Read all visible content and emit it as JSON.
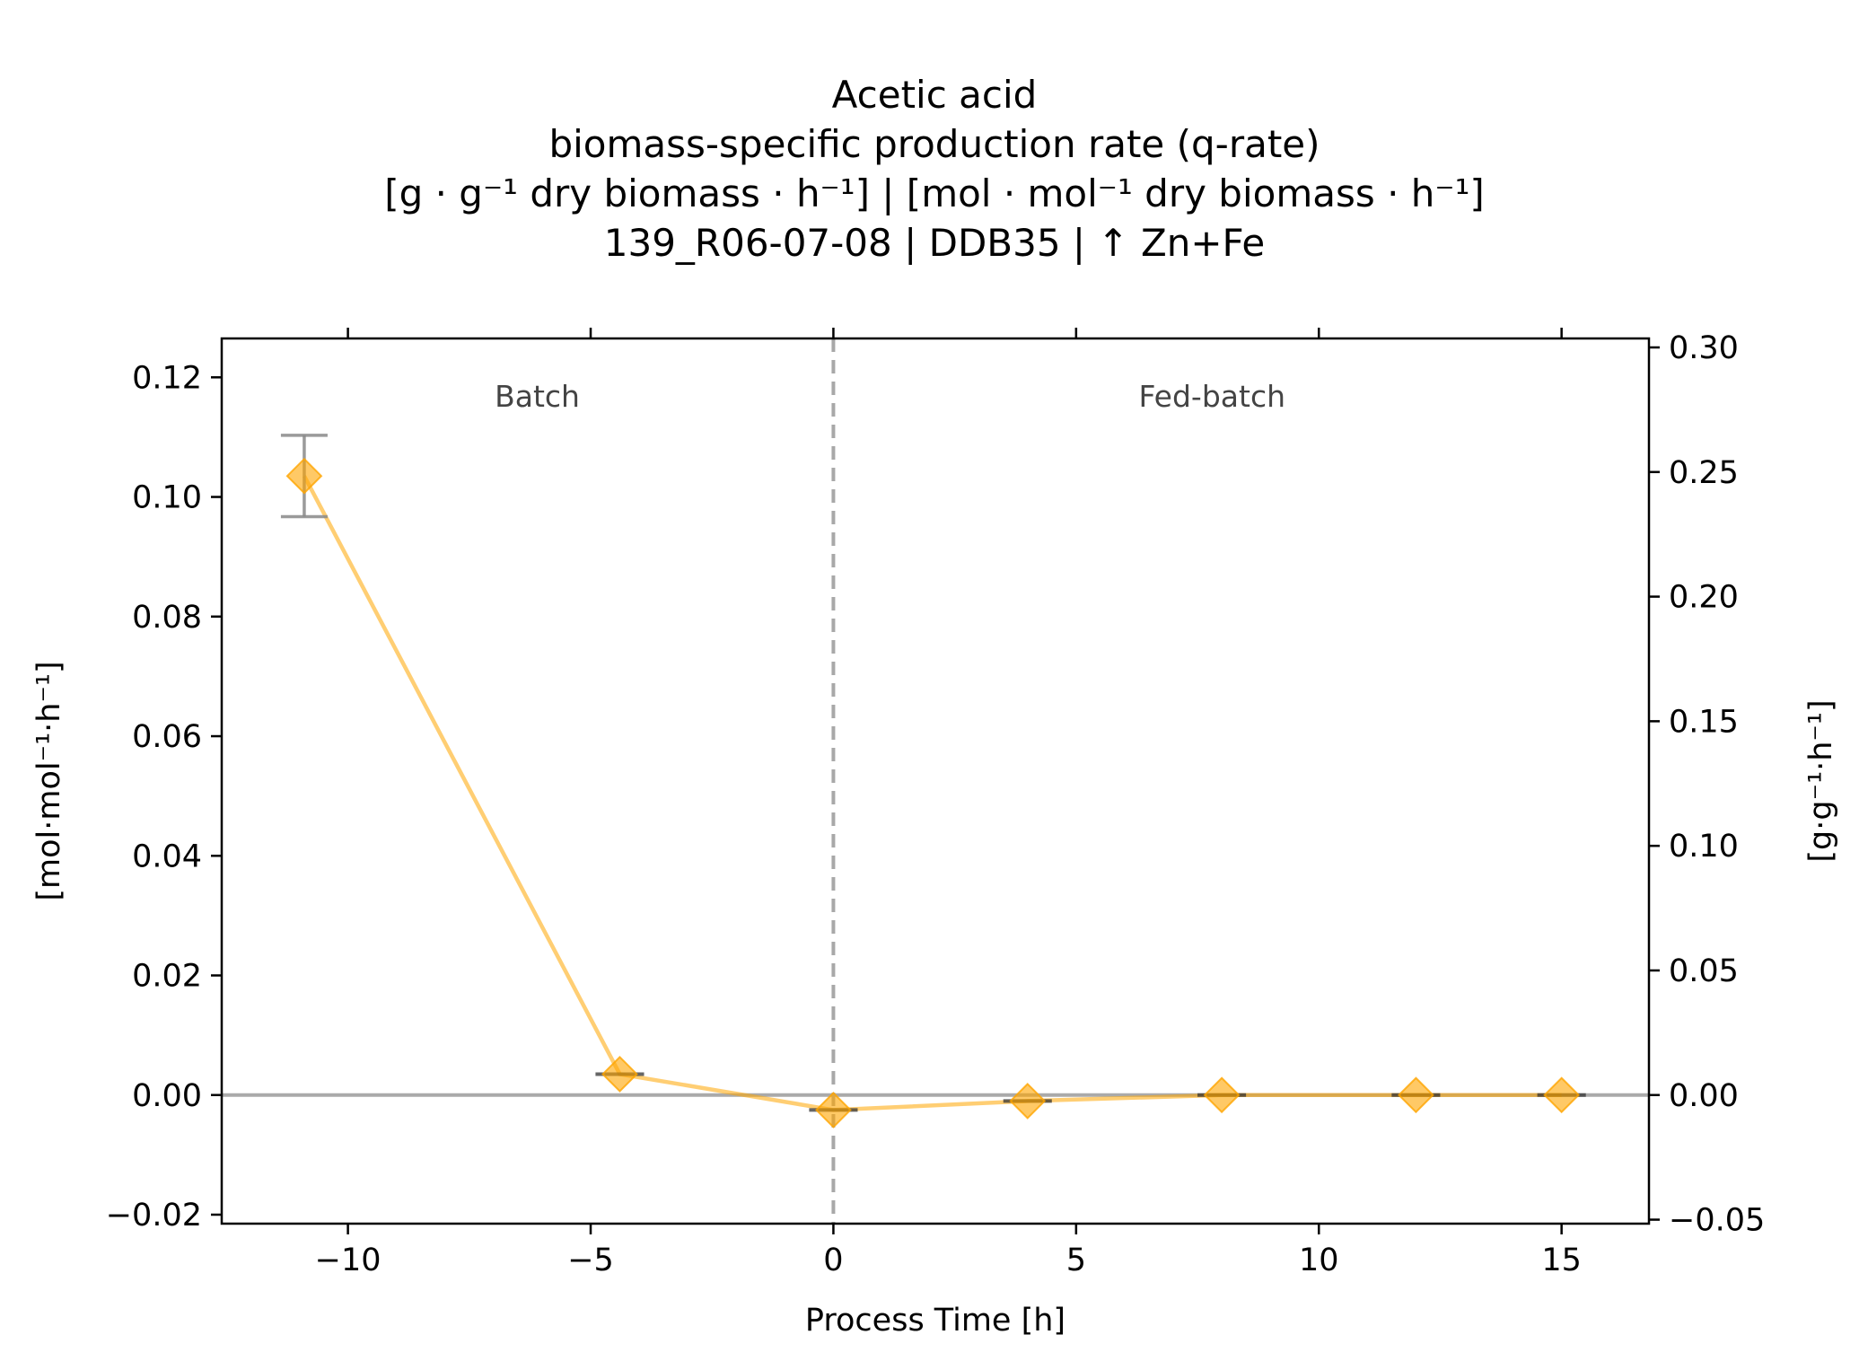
{
  "chart_data": {
    "type": "line",
    "title_lines": [
      "Acetic acid",
      "biomass-specific production rate (q-rate)",
      "[g · g⁻¹ dry biomass · h⁻¹]    |    [mol · mol⁻¹ dry biomass · h⁻¹]",
      "139_R06-07-08  |  DDB35  |  ↑ Zn+Fe"
    ],
    "xlabel": "Process Time [h]",
    "ylabel_left": "[mol·mol⁻¹·h⁻¹]",
    "ylabel_right": "[g·g⁻¹·h⁻¹]",
    "xlim": [
      -12.6,
      16.8
    ],
    "ylim_left": [
      -0.0215,
      0.1265
    ],
    "ylim_right": [
      -0.0516,
      0.3036
    ],
    "x_ticks": [
      -10,
      -5,
      0,
      5,
      10,
      15
    ],
    "x_tick_labels": [
      "−10",
      "−5",
      "0",
      "5",
      "10",
      "15"
    ],
    "y_ticks_left": [
      -0.02,
      0,
      0.02,
      0.04,
      0.06,
      0.08,
      0.1,
      0.12
    ],
    "y_tick_labels_left": [
      "−0.02",
      "0.00",
      "0.02",
      "0.04",
      "0.06",
      "0.08",
      "0.10",
      "0.12"
    ],
    "y_ticks_right": [
      -0.05,
      0,
      0.05,
      0.1,
      0.15,
      0.2,
      0.25,
      0.3
    ],
    "y_tick_labels_right": [
      "−0.05",
      "0.00",
      "0.05",
      "0.10",
      "0.15",
      "0.20",
      "0.25",
      "0.30"
    ],
    "phase_boundary_x": 0,
    "phase_labels": [
      {
        "text": "Batch",
        "x": -6.1
      },
      {
        "text": "Fed-batch",
        "x": 7.8
      }
    ],
    "zero_line": true,
    "grid": false,
    "series": [
      {
        "marker": "diamond",
        "color": "#FFA500",
        "x": [
          -10.9,
          -4.4,
          0,
          4,
          8,
          12,
          15
        ],
        "y": [
          0.1035,
          0.0035,
          -0.0025,
          -0.001,
          0.0,
          0.0,
          0.0
        ],
        "err": [
          0.0068,
          0.0002,
          0.0002,
          0.0002,
          0.0001,
          0.0001,
          0.0001
        ],
        "hbar_half_width": [
          0,
          0.5,
          0.5,
          0.5,
          0.5,
          0.5,
          0.5
        ]
      }
    ]
  }
}
